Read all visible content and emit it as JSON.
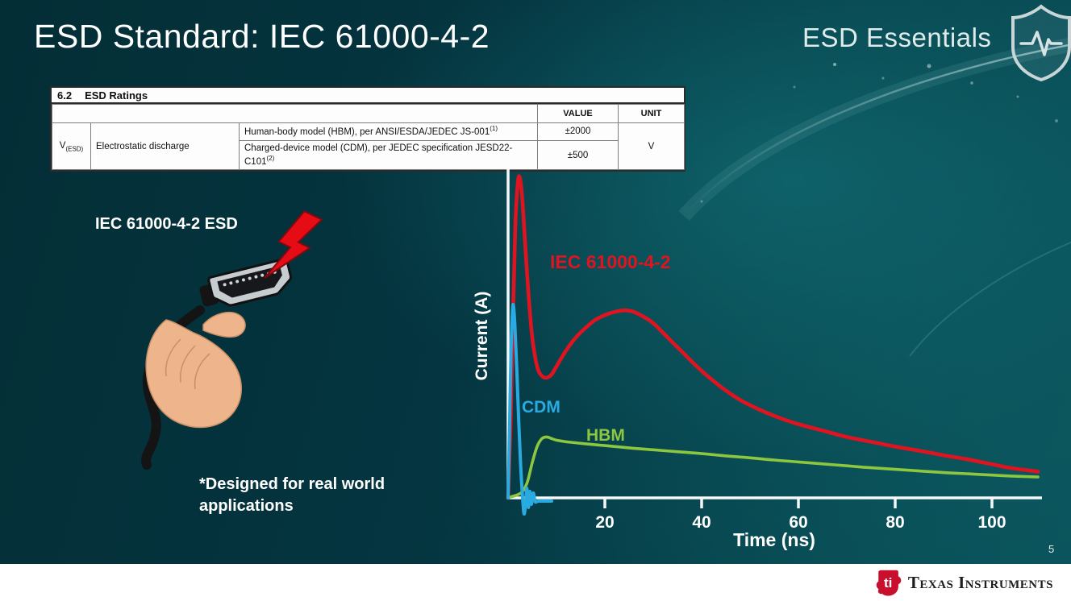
{
  "slide": {
    "title": "ESD Standard: IEC 61000-4-2",
    "series_label": "ESD Essentials",
    "page_number": "5"
  },
  "ratings_table": {
    "section_number": "6.2",
    "section_title": "ESD Ratings",
    "col_value": "VALUE",
    "col_unit": "UNIT",
    "param_symbol": "V",
    "param_symbol_sub": "(ESD)",
    "param_name": "Electrostatic discharge",
    "rows": [
      {
        "desc": "Human-body model (HBM), per ANSI/ESDA/JEDEC JS-001",
        "desc_sup": "(1)",
        "value": "±2000"
      },
      {
        "desc": "Charged-device model (CDM), per JEDEC specification JESD22-C101",
        "desc_sup": "(2)",
        "value": "±500"
      }
    ],
    "unit": "V"
  },
  "illustration": {
    "caption": "IEC 61000-4-2 ESD",
    "note": "*Designed for real world applications"
  },
  "footer": {
    "brand": "Texas Instruments"
  },
  "chart_data": {
    "type": "line",
    "xlabel": "Time (ns)",
    "ylabel": "Current (A)",
    "x_ticks": [
      20,
      40,
      60,
      80,
      100
    ],
    "xlim": [
      0,
      110
    ],
    "ylim": [
      0,
      1
    ],
    "legend_position": "inline-labels",
    "grid": false,
    "series": [
      {
        "name": "IEC 61000-4-2",
        "color": "#e01420",
        "points": [
          [
            0,
            0
          ],
          [
            0.5,
            0.22
          ],
          [
            1,
            0.55
          ],
          [
            1.5,
            0.85
          ],
          [
            2,
            0.98
          ],
          [
            2.4,
            1.0
          ],
          [
            2.9,
            0.94
          ],
          [
            3.5,
            0.8
          ],
          [
            4.2,
            0.64
          ],
          [
            5,
            0.5
          ],
          [
            6,
            0.41
          ],
          [
            7,
            0.38
          ],
          [
            8,
            0.375
          ],
          [
            9,
            0.385
          ],
          [
            10,
            0.41
          ],
          [
            12,
            0.46
          ],
          [
            14,
            0.5
          ],
          [
            16,
            0.53
          ],
          [
            18,
            0.555
          ],
          [
            20,
            0.57
          ],
          [
            22,
            0.58
          ],
          [
            24,
            0.585
          ],
          [
            26,
            0.58
          ],
          [
            28,
            0.565
          ],
          [
            30,
            0.545
          ],
          [
            33,
            0.5
          ],
          [
            36,
            0.455
          ],
          [
            39,
            0.41
          ],
          [
            42,
            0.37
          ],
          [
            45,
            0.335
          ],
          [
            48,
            0.305
          ],
          [
            52,
            0.275
          ],
          [
            56,
            0.25
          ],
          [
            60,
            0.23
          ],
          [
            65,
            0.21
          ],
          [
            70,
            0.19
          ],
          [
            75,
            0.175
          ],
          [
            80,
            0.16
          ],
          [
            85,
            0.147
          ],
          [
            90,
            0.133
          ],
          [
            95,
            0.12
          ],
          [
            100,
            0.105
          ],
          [
            104,
            0.093
          ],
          [
            109.5,
            0.082
          ]
        ]
      },
      {
        "name": "HBM",
        "color": "#8dc63f",
        "points": [
          [
            0,
            0
          ],
          [
            1,
            0.005
          ],
          [
            2,
            0.01
          ],
          [
            3,
            0.02
          ],
          [
            4,
            0.05
          ],
          [
            5,
            0.11
          ],
          [
            6,
            0.16
          ],
          [
            7,
            0.185
          ],
          [
            8,
            0.19
          ],
          [
            9,
            0.185
          ],
          [
            10,
            0.18
          ],
          [
            12,
            0.175
          ],
          [
            15,
            0.17
          ],
          [
            20,
            0.163
          ],
          [
            25,
            0.156
          ],
          [
            30,
            0.15
          ],
          [
            35,
            0.144
          ],
          [
            40,
            0.138
          ],
          [
            45,
            0.131
          ],
          [
            50,
            0.125
          ],
          [
            55,
            0.118
          ],
          [
            60,
            0.112
          ],
          [
            65,
            0.106
          ],
          [
            70,
            0.1
          ],
          [
            75,
            0.094
          ],
          [
            80,
            0.089
          ],
          [
            85,
            0.084
          ],
          [
            90,
            0.079
          ],
          [
            95,
            0.075
          ],
          [
            100,
            0.071
          ],
          [
            104,
            0.068
          ],
          [
            109.5,
            0.065
          ]
        ]
      },
      {
        "name": "CDM",
        "color": "#29abe2",
        "points": [
          [
            0,
            0
          ],
          [
            0.3,
            0.22
          ],
          [
            0.6,
            0.45
          ],
          [
            0.9,
            0.58
          ],
          [
            1.1,
            0.6
          ],
          [
            1.4,
            0.54
          ],
          [
            1.8,
            0.4
          ],
          [
            2.2,
            0.24
          ],
          [
            2.6,
            0.1
          ],
          [
            3,
            0.0
          ],
          [
            3.3,
            -0.05
          ],
          [
            3.6,
            -0.02
          ],
          [
            3.9,
            0.03
          ],
          [
            4.2,
            -0.03
          ],
          [
            4.5,
            0.02
          ],
          [
            4.8,
            -0.02
          ],
          [
            5.2,
            0.015
          ],
          [
            5.6,
            -0.012
          ],
          [
            6.2,
            -0.01
          ],
          [
            7,
            -0.01
          ],
          [
            9,
            -0.01
          ]
        ]
      }
    ]
  }
}
